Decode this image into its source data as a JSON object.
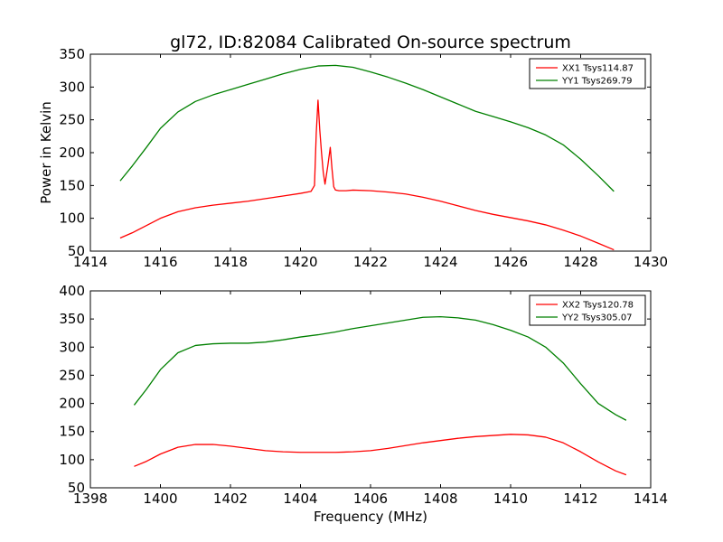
{
  "figure": {
    "title": "gl72, ID:82084 Calibrated On-source spectrum",
    "xlabel": "Frequency (MHz)",
    "ylabel": "Power in Kelvin"
  },
  "chart_data": [
    {
      "type": "line",
      "title": "gl72, ID:82084 Calibrated On-source spectrum",
      "xlabel": "",
      "ylabel": "Power in Kelvin",
      "xlim": [
        1414,
        1430
      ],
      "ylim": [
        50,
        350
      ],
      "xticks": [
        1414,
        1416,
        1418,
        1420,
        1422,
        1424,
        1426,
        1428,
        1430
      ],
      "yticks": [
        50,
        100,
        150,
        200,
        250,
        300,
        350
      ],
      "legend_position": "top-right",
      "grid": false,
      "series": [
        {
          "name": "XX1 Tsys114.87",
          "color": "#ff0000",
          "x": [
            1414.85,
            1415.2,
            1415.6,
            1416.0,
            1416.5,
            1417.0,
            1417.5,
            1418.0,
            1418.5,
            1419.0,
            1419.5,
            1420.0,
            1420.3,
            1420.4,
            1420.45,
            1420.5,
            1420.55,
            1420.6,
            1420.65,
            1420.7,
            1420.78,
            1420.85,
            1420.9,
            1420.95,
            1421.0,
            1421.1,
            1421.3,
            1421.5,
            1422.0,
            1422.5,
            1423.0,
            1423.5,
            1424.0,
            1424.5,
            1425.0,
            1425.5,
            1426.0,
            1426.5,
            1427.0,
            1427.5,
            1428.0,
            1428.5,
            1428.95
          ],
          "values": [
            70,
            78,
            89,
            100,
            110,
            116,
            120,
            123,
            126,
            130,
            134,
            138,
            141,
            150,
            230,
            280,
            235,
            200,
            170,
            152,
            180,
            208,
            175,
            148,
            143,
            142,
            142,
            143,
            142,
            140,
            137,
            132,
            126,
            119,
            112,
            106,
            101,
            96,
            90,
            82,
            73,
            62,
            52
          ]
        },
        {
          "name": "YY1 Tsys269.79",
          "color": "#008000",
          "x": [
            1414.85,
            1415.2,
            1415.6,
            1416.0,
            1416.5,
            1417.0,
            1417.5,
            1418.0,
            1418.5,
            1419.0,
            1419.5,
            1420.0,
            1420.5,
            1421.0,
            1421.5,
            1422.0,
            1422.5,
            1423.0,
            1423.5,
            1424.0,
            1424.5,
            1425.0,
            1425.5,
            1426.0,
            1426.5,
            1427.0,
            1427.5,
            1428.0,
            1428.5,
            1428.95
          ],
          "values": [
            157,
            180,
            208,
            237,
            262,
            278,
            288,
            296,
            304,
            312,
            320,
            327,
            332,
            333,
            330,
            323,
            315,
            306,
            296,
            285,
            274,
            263,
            255,
            247,
            238,
            227,
            212,
            190,
            165,
            141
          ]
        }
      ]
    },
    {
      "type": "line",
      "title": "",
      "xlabel": "Frequency (MHz)",
      "ylabel": "",
      "xlim": [
        1398,
        1414
      ],
      "ylim": [
        50,
        400
      ],
      "xticks": [
        1398,
        1400,
        1402,
        1404,
        1406,
        1408,
        1410,
        1412,
        1414
      ],
      "yticks": [
        50,
        100,
        150,
        200,
        250,
        300,
        350,
        400
      ],
      "legend_position": "top-right",
      "grid": false,
      "series": [
        {
          "name": "XX2 Tsys120.78",
          "color": "#ff0000",
          "x": [
            1399.25,
            1399.6,
            1400.0,
            1400.5,
            1401.0,
            1401.5,
            1402.0,
            1402.5,
            1403.0,
            1403.5,
            1404.0,
            1404.5,
            1405.0,
            1405.5,
            1406.0,
            1406.5,
            1407.0,
            1407.5,
            1408.0,
            1408.5,
            1409.0,
            1409.5,
            1410.0,
            1410.5,
            1411.0,
            1411.5,
            1412.0,
            1412.5,
            1413.0,
            1413.3
          ],
          "values": [
            88,
            97,
            110,
            122,
            127,
            127,
            124,
            120,
            116,
            114,
            113,
            113,
            113,
            114,
            116,
            120,
            125,
            130,
            134,
            138,
            141,
            143,
            145,
            144,
            140,
            130,
            114,
            96,
            80,
            73
          ]
        },
        {
          "name": "YY2 Tsys305.07",
          "color": "#008000",
          "x": [
            1399.25,
            1399.6,
            1400.0,
            1400.5,
            1401.0,
            1401.5,
            1402.0,
            1402.5,
            1403.0,
            1403.5,
            1404.0,
            1404.5,
            1405.0,
            1405.5,
            1406.0,
            1406.5,
            1407.0,
            1407.5,
            1408.0,
            1408.5,
            1409.0,
            1409.5,
            1410.0,
            1410.5,
            1411.0,
            1411.5,
            1412.0,
            1412.5,
            1413.0,
            1413.3
          ],
          "values": [
            197,
            225,
            260,
            290,
            303,
            306,
            307,
            307,
            309,
            313,
            318,
            322,
            327,
            333,
            338,
            343,
            348,
            353,
            354,
            352,
            348,
            340,
            330,
            318,
            300,
            272,
            235,
            200,
            180,
            170
          ]
        }
      ]
    }
  ]
}
